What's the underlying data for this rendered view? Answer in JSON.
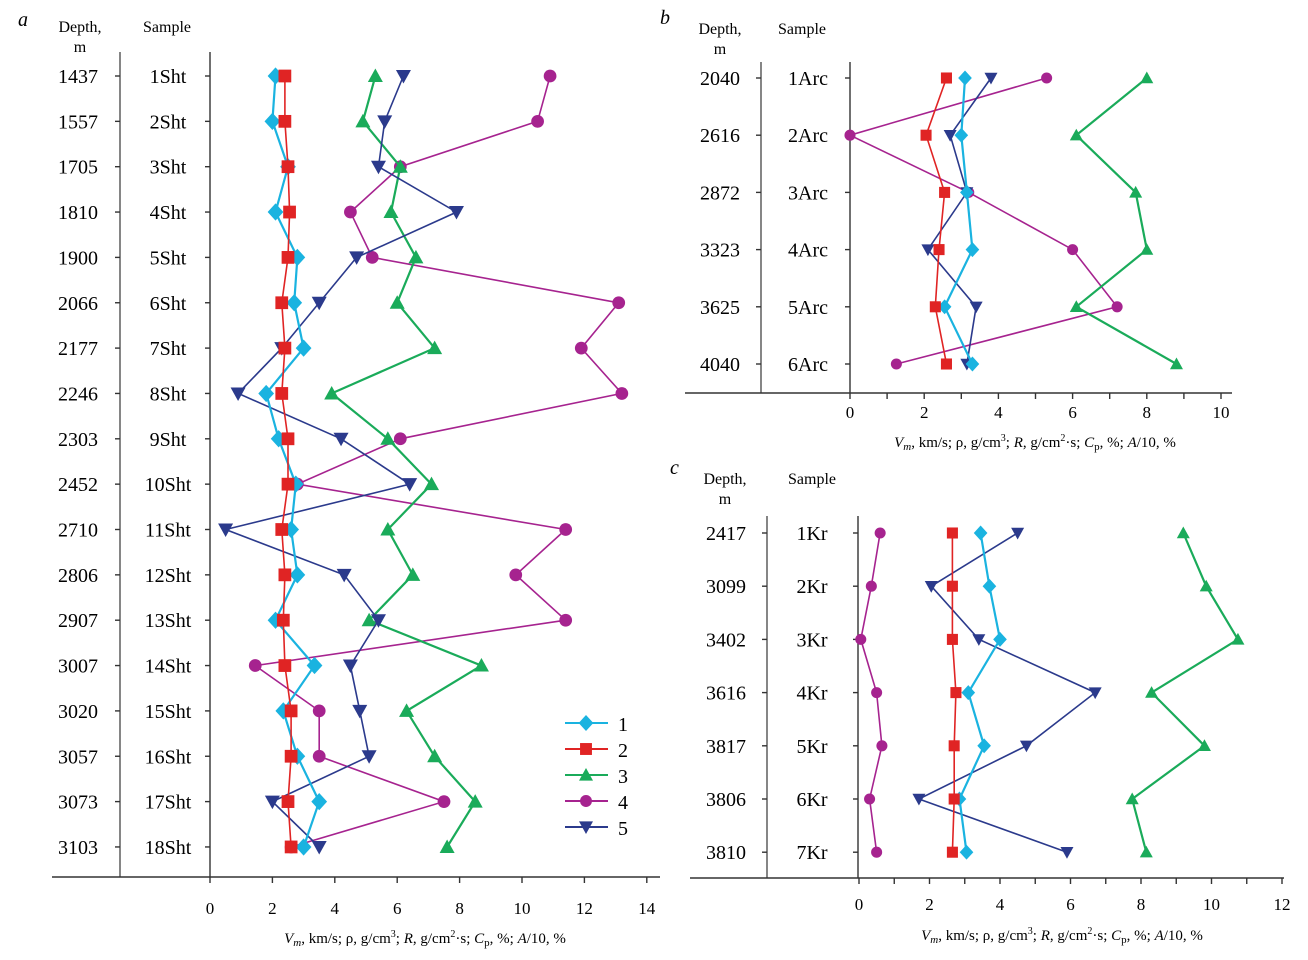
{
  "figure": {
    "x_axis_label_parts": {
      "vm_symbol": "V",
      "vm_sub": "m",
      "rest1": ", km/s; ρ, g/cm",
      "sup3": "3",
      "rest2": "; ",
      "r_symbol": "R",
      "rest3": ", g/cm",
      "sup2": "2",
      "rest4": "·s; ",
      "cp_symbol": "C",
      "cp_sub": "p",
      "rest5": ", %; ",
      "a_symbol": "A",
      "rest6": "/10, %"
    },
    "depth_header_line1": "Depth,",
    "depth_header_line2": "m",
    "sample_header": "Sample",
    "legend": [
      {
        "id": "1",
        "label": "1",
        "marker": "diamond",
        "color": "#1ab3e0"
      },
      {
        "id": "2",
        "label": "2",
        "marker": "square",
        "color": "#e02424"
      },
      {
        "id": "3",
        "label": "3",
        "marker": "triangle-up",
        "color": "#1aab5a"
      },
      {
        "id": "4",
        "label": "4",
        "marker": "circle",
        "color": "#a6238f"
      },
      {
        "id": "5",
        "label": "5",
        "marker": "triangle-down",
        "color": "#2b3a8c"
      }
    ]
  },
  "chart_data": [
    {
      "panel": "a",
      "type": "line",
      "orientation": "vertical-profile",
      "xlabel": "Vm, km/s; ρ, g/cm3; R, g/cm2·s; Cp, %; A/10, %",
      "xlim": [
        0,
        14
      ],
      "xticks": [
        0,
        2,
        4,
        6,
        8,
        10,
        12,
        14
      ],
      "legend_position": "bottom-right",
      "depths": [
        "1437",
        "1557",
        "1705",
        "1810",
        "1900",
        "2066",
        "2177",
        "2246",
        "2303",
        "2452",
        "2710",
        "2806",
        "2907",
        "3007",
        "3020",
        "3057",
        "3073",
        "3103"
      ],
      "samples": [
        "1Sht",
        "2Sht",
        "3Sht",
        "4Sht",
        "5Sht",
        "6Sht",
        "7Sht",
        "8Sht",
        "9Sht",
        "10Sht",
        "11Sht",
        "12Sht",
        "13Sht",
        "14Sht",
        "15Sht",
        "16Sht",
        "17Sht",
        "18Sht"
      ],
      "series": [
        {
          "name": "1",
          "values": [
            2.1,
            2.0,
            2.5,
            2.1,
            2.8,
            2.7,
            3.0,
            1.8,
            2.2,
            2.75,
            2.6,
            2.8,
            2.1,
            3.35,
            2.35,
            2.8,
            3.5,
            3.0
          ]
        },
        {
          "name": "2",
          "values": [
            2.4,
            2.4,
            2.5,
            2.55,
            2.5,
            2.3,
            2.4,
            2.3,
            2.5,
            2.5,
            2.3,
            2.4,
            2.35,
            2.4,
            2.6,
            2.6,
            2.5,
            2.6
          ]
        },
        {
          "name": "3",
          "values": [
            5.3,
            4.9,
            6.1,
            5.8,
            6.6,
            6.0,
            7.2,
            3.9,
            5.7,
            7.1,
            5.7,
            6.5,
            5.1,
            8.7,
            6.3,
            7.2,
            8.5,
            7.6
          ]
        },
        {
          "name": "4",
          "values": [
            10.9,
            10.5,
            6.1,
            4.5,
            5.2,
            13.1,
            11.9,
            13.2,
            6.1,
            2.8,
            11.4,
            9.8,
            11.4,
            1.45,
            3.5,
            3.5,
            7.5,
            2.6
          ]
        },
        {
          "name": "5",
          "values": [
            6.2,
            5.6,
            5.4,
            7.9,
            4.7,
            3.5,
            2.3,
            0.9,
            4.2,
            6.4,
            0.5,
            4.3,
            5.4,
            4.5,
            4.8,
            5.1,
            2.0,
            3.5
          ]
        }
      ]
    },
    {
      "panel": "b",
      "type": "line",
      "orientation": "vertical-profile",
      "xlabel": "Vm, km/s; ρ, g/cm3; R, g/cm2·s; Cp, %; A/10, %",
      "xlim": [
        0,
        10
      ],
      "xticks": [
        0,
        2,
        4,
        6,
        8,
        10
      ],
      "depths": [
        "2040",
        "2616",
        "2872",
        "3323",
        "3625",
        "4040"
      ],
      "samples": [
        "1Arc",
        "2Arc",
        "3Arc",
        "4Arc",
        "5Arc",
        "6Arc"
      ],
      "series": [
        {
          "name": "1",
          "values": [
            3.1,
            3.0,
            3.15,
            3.3,
            2.55,
            3.3
          ]
        },
        {
          "name": "2",
          "values": [
            2.6,
            2.05,
            2.55,
            2.4,
            2.3,
            2.6
          ]
        },
        {
          "name": "3",
          "values": [
            8.0,
            6.1,
            7.7,
            8.0,
            6.1,
            8.8
          ]
        },
        {
          "name": "4",
          "values": [
            5.3,
            0.0,
            3.2,
            6.0,
            7.2,
            1.25
          ]
        },
        {
          "name": "5",
          "values": [
            3.8,
            2.7,
            3.15,
            2.1,
            3.4,
            3.15
          ]
        }
      ]
    },
    {
      "panel": "c",
      "type": "line",
      "orientation": "vertical-profile",
      "xlabel": "Vm, km/s; ρ, g/cm3; R, g/cm2·s; Cp, %; A/10, %",
      "xlim": [
        0,
        12
      ],
      "xticks": [
        0,
        2,
        4,
        6,
        8,
        10,
        12
      ],
      "depths": [
        "2417",
        "3099",
        "3402",
        "3616",
        "3817",
        "3806",
        "3810"
      ],
      "samples": [
        "1Kr",
        "2Kr",
        "3Kr",
        "4Kr",
        "5Kr",
        "6Kr",
        "7Kr"
      ],
      "series": [
        {
          "name": "1",
          "values": [
            3.45,
            3.7,
            4.0,
            3.1,
            3.55,
            2.85,
            3.05
          ]
        },
        {
          "name": "2",
          "values": [
            2.65,
            2.65,
            2.65,
            2.75,
            2.7,
            2.7,
            2.65
          ]
        },
        {
          "name": "3",
          "values": [
            9.2,
            9.85,
            10.75,
            8.3,
            9.8,
            7.75,
            8.15
          ]
        },
        {
          "name": "4",
          "values": [
            0.6,
            0.35,
            0.05,
            0.5,
            0.65,
            0.3,
            0.5
          ]
        },
        {
          "name": "5",
          "values": [
            4.5,
            2.05,
            3.4,
            6.7,
            4.75,
            1.7,
            5.9
          ]
        }
      ]
    }
  ]
}
